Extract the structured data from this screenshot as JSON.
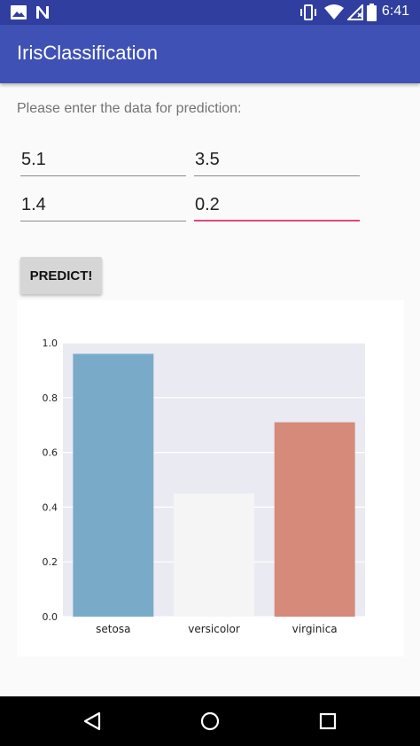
{
  "status_bar": {
    "time": "6:41",
    "colors": {
      "background": "#303f9f"
    },
    "icons": [
      "image-icon",
      "notification-n-icon",
      "vibrate-icon",
      "wifi-icon",
      "no-sim-icon",
      "battery-icon"
    ]
  },
  "app_bar": {
    "title": "IrisClassification",
    "colors": {
      "background": "#3f51b5",
      "text": "#ffffff"
    }
  },
  "form": {
    "prompt": "Please enter the data for prediction:",
    "fields": [
      {
        "value": "5.1"
      },
      {
        "value": "3.5"
      },
      {
        "value": "1.4"
      },
      {
        "value": "0.2"
      }
    ],
    "accent_color": "#e04777",
    "predict_label": "PREDICT!"
  },
  "chart_data": {
    "type": "bar",
    "categories": [
      "setosa",
      "versicolor",
      "virginica"
    ],
    "values": [
      0.96,
      0.45,
      0.71
    ],
    "colors": [
      "#79abc9",
      "#f5f5f5",
      "#d68a79"
    ],
    "ylim": [
      0,
      1.0
    ],
    "yticks": [
      "0.0",
      "0.2",
      "0.4",
      "0.6",
      "0.8",
      "1.0"
    ],
    "title": "",
    "xlabel": "",
    "ylabel": "",
    "grid": true,
    "plot_background": "#eaeaf2"
  },
  "nav_bar": {
    "icons": [
      "back-icon",
      "home-icon",
      "recents-icon"
    ],
    "colors": {
      "background": "#000000"
    }
  }
}
